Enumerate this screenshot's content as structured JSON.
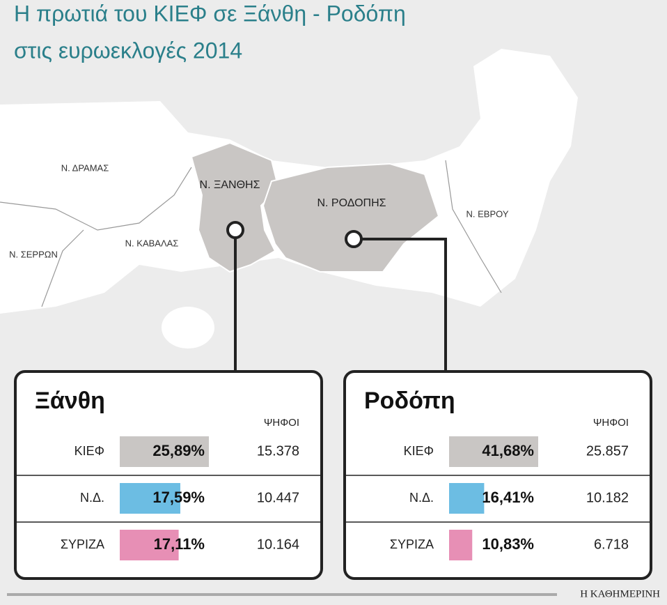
{
  "title": [
    "Η πρωτιά του ΚΙΕΦ σε Ξάνθη - Ροδόπη",
    "στις ευρωεκλογές 2014"
  ],
  "map_labels": [
    "Ν. ΔΡΑΜΑΣ",
    "Ν. ΞΑΝΘΗΣ",
    "Ν. ΡΟΔΟΠΗΣ",
    "Ν. ΕΒΡΟΥ",
    "Ν. ΣΕΡΡΩΝ",
    "Ν. ΚΑΒΑΛΑΣ"
  ],
  "panels": [
    {
      "name": "Ξάνθη",
      "votes_header": "ΨΗΦΟΙ",
      "rows": [
        {
          "party": "ΚΙΕΦ",
          "percent": 25.89,
          "percent_label": "25,89%",
          "votes": "15.378",
          "color": "#c9c6c4"
        },
        {
          "party": "Ν.Δ.",
          "percent": 17.59,
          "percent_label": "17,59%",
          "votes": "10.447",
          "color": "#6cbde3"
        },
        {
          "party": "ΣΥΡΙΖΑ",
          "percent": 17.11,
          "percent_label": "17,11%",
          "votes": "10.164",
          "color": "#e78fb5"
        }
      ]
    },
    {
      "name": "Ροδόπη",
      "votes_header": "ΨΗΦΟΙ",
      "rows": [
        {
          "party": "ΚΙΕΦ",
          "percent": 41.68,
          "percent_label": "41,68%",
          "votes": "25.857",
          "color": "#c9c6c4"
        },
        {
          "party": "Ν.Δ.",
          "percent": 16.41,
          "percent_label": "16,41%",
          "votes": "10.182",
          "color": "#6cbde3"
        },
        {
          "party": "ΣΥΡΙΖΑ",
          "percent": 10.83,
          "percent_label": "10,83%",
          "votes": "6.718",
          "color": "#e78fb5"
        }
      ]
    }
  ],
  "source": "Η ΚΑΘΗΜΕΡΙΝΗ"
}
